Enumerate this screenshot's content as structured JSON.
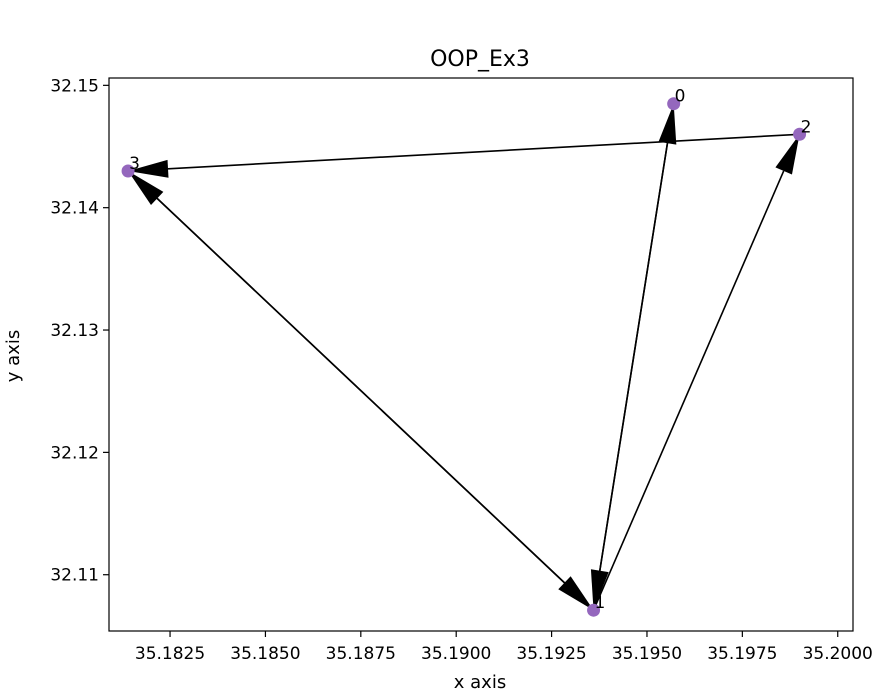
{
  "chart_data": {
    "type": "scatter",
    "title": "OOP_Ex3",
    "xlabel": "x axis",
    "ylabel": "y axis",
    "xlim": [
      35.1809,
      35.2004
    ],
    "ylim": [
      32.1054,
      32.1506
    ],
    "xticks": [
      35.1825,
      35.185,
      35.1875,
      35.19,
      35.1925,
      35.195,
      35.1975,
      35.2
    ],
    "xtick_labels": [
      "35.1825",
      "35.1850",
      "35.1875",
      "35.1900",
      "35.1925",
      "35.1950",
      "35.1975",
      "35.2000"
    ],
    "yticks": [
      32.11,
      32.12,
      32.13,
      32.14,
      32.15
    ],
    "ytick_labels": [
      "32.11",
      "32.12",
      "32.13",
      "32.14",
      "32.15"
    ],
    "grid": false,
    "legend": "none",
    "colors": {
      "node": "#9467bd",
      "edge": "#000000"
    },
    "nodes": [
      {
        "id": 0,
        "label": "0",
        "x": 35.1957,
        "y": 32.1485
      },
      {
        "id": 1,
        "label": "1",
        "x": 35.1936,
        "y": 32.1071
      },
      {
        "id": 2,
        "label": "2",
        "x": 35.199,
        "y": 32.146
      },
      {
        "id": 3,
        "label": "3",
        "x": 35.1814,
        "y": 32.143
      }
    ],
    "edges": [
      {
        "from": 1,
        "to": 0
      },
      {
        "from": 0,
        "to": 1
      },
      {
        "from": 1,
        "to": 2
      },
      {
        "from": 2,
        "to": 3
      },
      {
        "from": 1,
        "to": 3
      },
      {
        "from": 3,
        "to": 1
      }
    ]
  }
}
